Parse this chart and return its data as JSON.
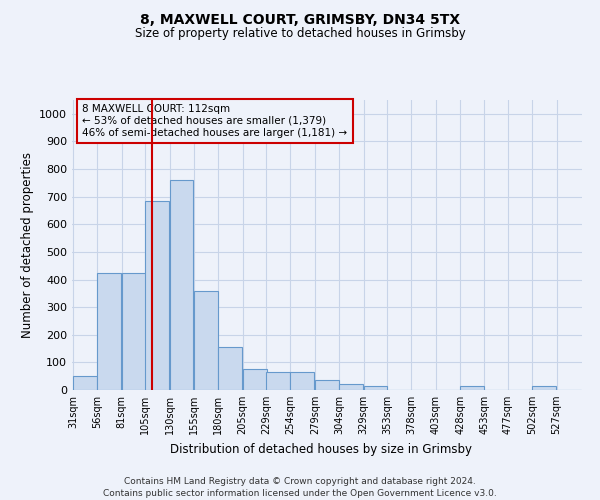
{
  "title1": "8, MAXWELL COURT, GRIMSBY, DN34 5TX",
  "title2": "Size of property relative to detached houses in Grimsby",
  "xlabel": "Distribution of detached houses by size in Grimsby",
  "ylabel": "Number of detached properties",
  "bins": [
    31,
    56,
    81,
    105,
    130,
    155,
    180,
    205,
    229,
    254,
    279,
    304,
    329,
    353,
    378,
    403,
    428,
    453,
    477,
    502,
    527
  ],
  "bin_width": 25,
  "bar_heights": [
    50,
    425,
    425,
    685,
    760,
    360,
    155,
    75,
    65,
    65,
    35,
    20,
    15,
    0,
    0,
    0,
    15,
    0,
    0,
    15,
    0
  ],
  "bar_color": "#c9d9ee",
  "bar_edge_color": "#6699cc",
  "grid_color": "#c8d4e8",
  "property_size": 112,
  "redline_color": "#cc0000",
  "annotation_line1": "8 MAXWELL COURT: 112sqm",
  "annotation_line2": "← 53% of detached houses are smaller (1,379)",
  "annotation_line3": "46% of semi-detached houses are larger (1,181) →",
  "annotation_box_color": "#cc0000",
  "ylim": [
    0,
    1050
  ],
  "yticks": [
    0,
    100,
    200,
    300,
    400,
    500,
    600,
    700,
    800,
    900,
    1000
  ],
  "footer1": "Contains HM Land Registry data © Crown copyright and database right 2024.",
  "footer2": "Contains public sector information licensed under the Open Government Licence v3.0.",
  "bg_color": "#eef2fa"
}
